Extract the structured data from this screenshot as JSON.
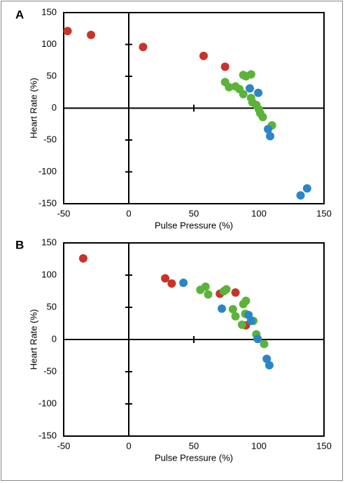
{
  "chart_data": [
    {
      "type": "scatter",
      "panel_label": "A",
      "x_label": "Pulse Pressure (%)",
      "y_label": "Heart Rate (%)",
      "xlim": [
        -50,
        150
      ],
      "xticks": [
        -50,
        0,
        50,
        100,
        150
      ],
      "ylim": [
        -150,
        150
      ],
      "yticks": [
        -150,
        -100,
        -50,
        0,
        50,
        100,
        150
      ],
      "series": [
        {
          "color": "#c9342a",
          "x": [
            -47,
            -29,
            11,
            57.5,
            74
          ],
          "values": [
            121,
            115,
            96,
            82,
            65
          ]
        },
        {
          "color": "#5bb33a",
          "x": [
            74,
            77,
            82,
            85,
            88,
            90,
            94,
            88,
            94,
            95,
            98,
            100,
            101,
            103,
            110
          ],
          "values": [
            41,
            33,
            34,
            30,
            52,
            50,
            53,
            22,
            16,
            9,
            5,
            -2,
            -8,
            -14,
            -27
          ]
        },
        {
          "color": "#2a86c6",
          "x": [
            93,
            99.5,
            107,
            108.6,
            132,
            137
          ],
          "values": [
            31,
            24,
            -33,
            -44,
            -137,
            -126
          ]
        }
      ]
    },
    {
      "type": "scatter",
      "panel_label": "B",
      "x_label": "Pulse Pressure (%)",
      "y_label": "Heart Rate (%)",
      "xlim": [
        -50,
        150
      ],
      "xticks": [
        -50,
        0,
        50,
        100,
        150
      ],
      "ylim": [
        -150,
        150
      ],
      "yticks": [
        -150,
        -100,
        -50,
        0,
        50,
        100,
        150
      ],
      "series": [
        {
          "color": "#c9342a",
          "x": [
            -35,
            28,
            33,
            70,
            82,
            90
          ],
          "values": [
            126,
            95,
            87,
            71,
            73,
            22
          ]
        },
        {
          "color": "#5bb33a",
          "x": [
            55,
            59,
            61,
            73,
            75,
            80,
            82,
            88,
            90,
            87,
            89.5,
            95.7,
            98,
            104
          ],
          "values": [
            77,
            82,
            70,
            75,
            78,
            47,
            36,
            55,
            60,
            23,
            40,
            29,
            8,
            -7
          ]
        },
        {
          "color": "#2a86c6",
          "x": [
            42,
            71.5,
            92,
            94,
            99,
            106,
            108
          ],
          "values": [
            88,
            48,
            38,
            29,
            1,
            -30,
            -40
          ]
        }
      ]
    }
  ]
}
